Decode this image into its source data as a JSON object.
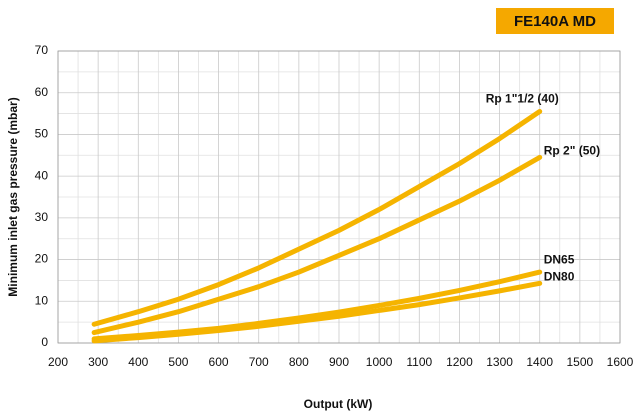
{
  "chart_data": {
    "type": "line",
    "badge": "FE140A MD",
    "xlabel": "Output (kW)",
    "ylabel": "Minimum inlet gas pressure (mbar)",
    "xlim": [
      200,
      1600
    ],
    "xticks": [
      200,
      300,
      400,
      500,
      600,
      700,
      800,
      900,
      1000,
      1100,
      1200,
      1300,
      1400,
      1500,
      1600
    ],
    "ylim": [
      0,
      70
    ],
    "yticks": [
      0,
      10,
      20,
      30,
      40,
      50,
      60,
      70
    ],
    "grid": true,
    "x": [
      290,
      400,
      500,
      600,
      700,
      800,
      900,
      1000,
      1100,
      1200,
      1300,
      1400
    ],
    "series": [
      {
        "name": "Rp 1\"1/2 (40)",
        "color": "#f5b400",
        "values": [
          4.5,
          7.5,
          10.5,
          14,
          18,
          22.5,
          27,
          32,
          37.5,
          43,
          49,
          55.5
        ]
      },
      {
        "name": "Rp 2\" (50)",
        "color": "#f5b400",
        "values": [
          2.5,
          5,
          7.5,
          10.5,
          13.5,
          17,
          21,
          25,
          29.5,
          34,
          39,
          44.5
        ]
      },
      {
        "name": "DN65",
        "color": "#f5b400",
        "values": [
          1,
          1.8,
          2.6,
          3.5,
          4.7,
          6,
          7.4,
          9,
          10.7,
          12.6,
          14.7,
          17
        ]
      },
      {
        "name": "DN80",
        "color": "#f5b400",
        "values": [
          0.5,
          1.3,
          2.1,
          3,
          4,
          5.2,
          6.4,
          7.8,
          9.2,
          10.8,
          12.5,
          14.3
        ]
      }
    ]
  }
}
